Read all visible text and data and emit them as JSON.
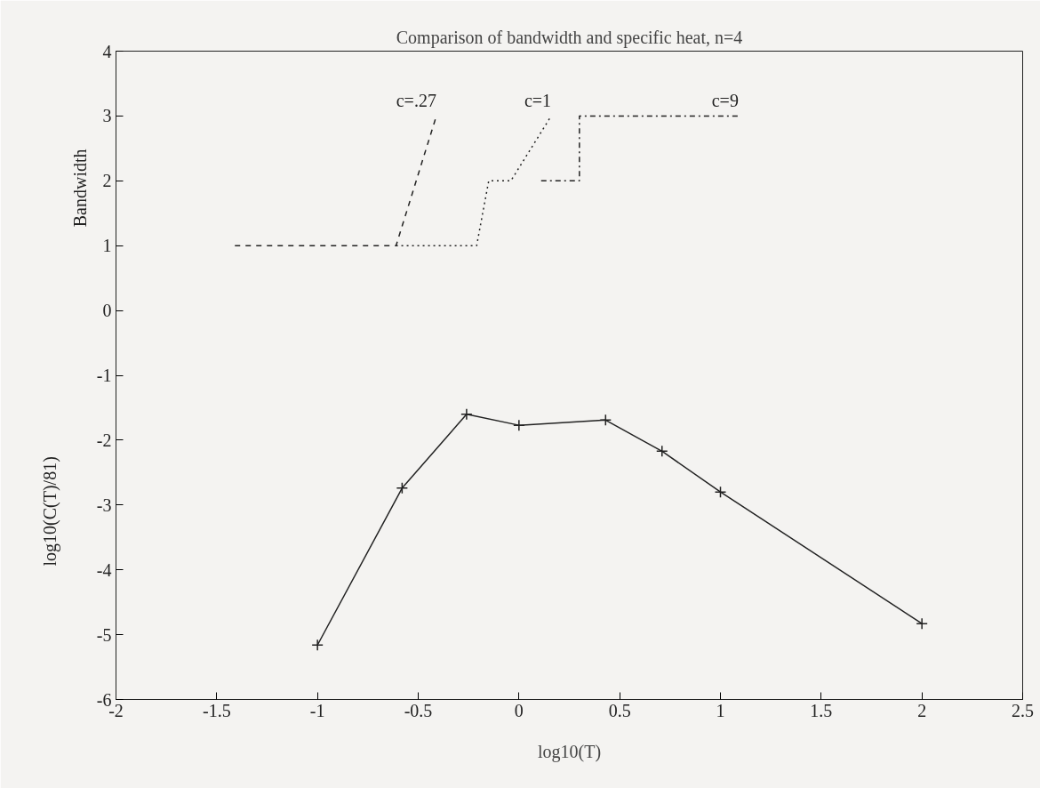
{
  "chart_data": {
    "type": "line",
    "title": "Comparison of bandwidth and specific heat, n=4",
    "xlabel": "log10(T)",
    "ylabel": "Bandwidth",
    "annotations": [
      "log10(C(T)/81)"
    ],
    "xlim": [
      -2,
      2.5
    ],
    "xticks": [
      -2,
      -1.5,
      -1,
      -0.5,
      0,
      0.5,
      1,
      1.5,
      2,
      2.5
    ],
    "ylim": [
      -6,
      4
    ],
    "yticks": [
      -6,
      -5,
      -4,
      -3,
      -2,
      -1,
      0,
      1,
      2,
      3,
      4
    ],
    "grid": false,
    "series": [
      {
        "name": "c=.27",
        "color": "#222222",
        "line_style": "dashed",
        "marker": "none",
        "x": [
          -1.41,
          -0.61,
          -0.41
        ],
        "values": [
          1,
          1,
          3
        ]
      },
      {
        "name": "c=1",
        "color": "#222222",
        "line_style": "dotted",
        "marker": "none",
        "x": [
          -0.61,
          -0.21,
          -0.15,
          -0.04,
          0.16
        ],
        "values": [
          1,
          1,
          2,
          2,
          3
        ]
      },
      {
        "name": "c=9",
        "color": "#222222",
        "line_style": "dashdot",
        "marker": "none",
        "x": [
          0.11,
          0.3,
          0.3,
          1.09
        ],
        "values": [
          2,
          2,
          3,
          3
        ]
      },
      {
        "color": "#222222",
        "line_style": "solid",
        "marker": "cross",
        "x": [
          -1,
          -0.58,
          -0.26,
          0,
          0.43,
          0.71,
          1,
          2
        ],
        "values": [
          -5.16,
          -2.74,
          -1.6,
          -1.77,
          -1.69,
          -2.17,
          -2.8,
          -4.83
        ]
      }
    ]
  }
}
